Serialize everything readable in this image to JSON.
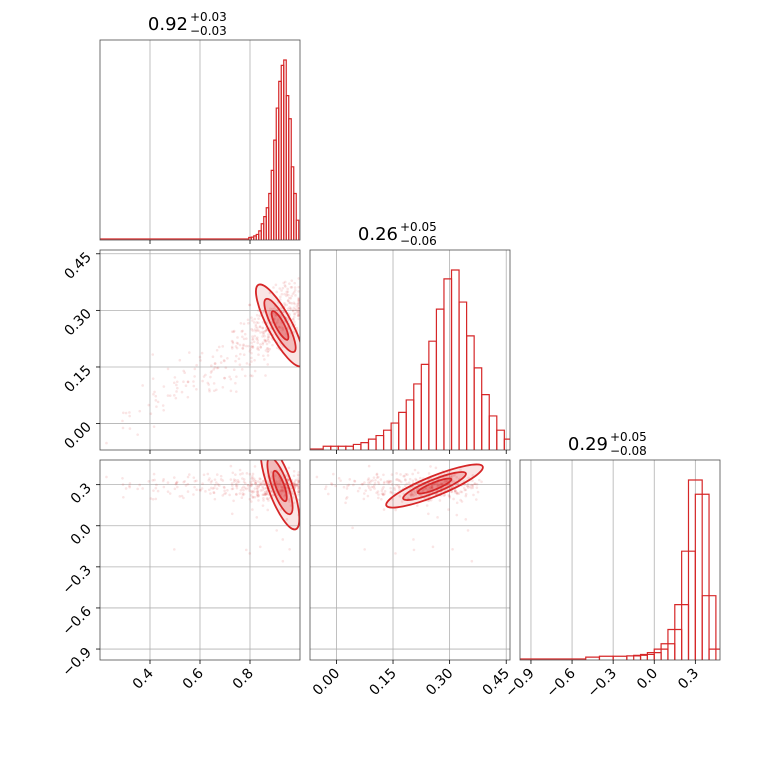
{
  "chart_data": {
    "type": "corner",
    "color": "#d62728",
    "grid": true,
    "parameters": [
      {
        "median": "0.92",
        "plus": "+0.03",
        "minus": "−0.03",
        "range": [
          0.2,
          1.0
        ],
        "ticks": [
          0.4,
          0.6,
          0.8
        ],
        "tick_labels": [
          "0.4",
          "0.6",
          "0.8"
        ]
      },
      {
        "median": "0.26",
        "plus": "+0.05",
        "minus": "−0.06",
        "range": [
          -0.07,
          0.46
        ],
        "ticks": [
          0.0,
          0.15,
          0.3,
          0.45
        ],
        "tick_labels": [
          "0.00",
          "0.15",
          "0.30",
          "0.45"
        ]
      },
      {
        "median": "0.29",
        "plus": "+0.05",
        "minus": "−0.08",
        "range": [
          -0.98,
          0.48
        ],
        "ticks": [
          -0.9,
          -0.6,
          -0.3,
          0.0,
          0.3
        ],
        "tick_labels": [
          "−0.9",
          "−0.6",
          "−0.3",
          "0.0",
          "0.3"
        ]
      }
    ],
    "histograms": [
      {
        "x": [
          0.8,
          0.81,
          0.82,
          0.83,
          0.84,
          0.85,
          0.86,
          0.87,
          0.88,
          0.89,
          0.9,
          0.91,
          0.92,
          0.93,
          0.94,
          0.95,
          0.96,
          0.97,
          0.98,
          0.99
        ],
        "counts": [
          0.003,
          0.005,
          0.012,
          0.02,
          0.04,
          0.08,
          0.12,
          0.17,
          0.25,
          0.38,
          0.55,
          0.73,
          0.88,
          0.97,
          1.0,
          0.8,
          0.67,
          0.4,
          0.25,
          0.1
        ]
      },
      {
        "x": [
          -0.025,
          -0.005,
          0.015,
          0.035,
          0.055,
          0.075,
          0.095,
          0.115,
          0.135,
          0.155,
          0.175,
          0.195,
          0.215,
          0.235,
          0.255,
          0.275,
          0.295,
          0.315,
          0.335,
          0.355,
          0.375,
          0.395,
          0.415,
          0.435,
          0.455
        ],
        "counts": [
          0.01,
          0.01,
          0.01,
          0.01,
          0.02,
          0.03,
          0.05,
          0.07,
          0.1,
          0.14,
          0.2,
          0.27,
          0.36,
          0.47,
          0.6,
          0.78,
          0.95,
          1.0,
          0.82,
          0.63,
          0.45,
          0.3,
          0.18,
          0.1,
          0.05
        ]
      },
      {
        "x": [
          -0.45,
          -0.35,
          -0.25,
          -0.15,
          -0.1,
          -0.05,
          0.0,
          0.05,
          0.1,
          0.15,
          0.2,
          0.25,
          0.3,
          0.35,
          0.4,
          0.45
        ],
        "counts": [
          0.005,
          0.01,
          0.01,
          0.012,
          0.015,
          0.02,
          0.03,
          0.05,
          0.08,
          0.16,
          0.3,
          0.6,
          1.0,
          0.92,
          0.35,
          0.05
        ]
      }
    ]
  }
}
